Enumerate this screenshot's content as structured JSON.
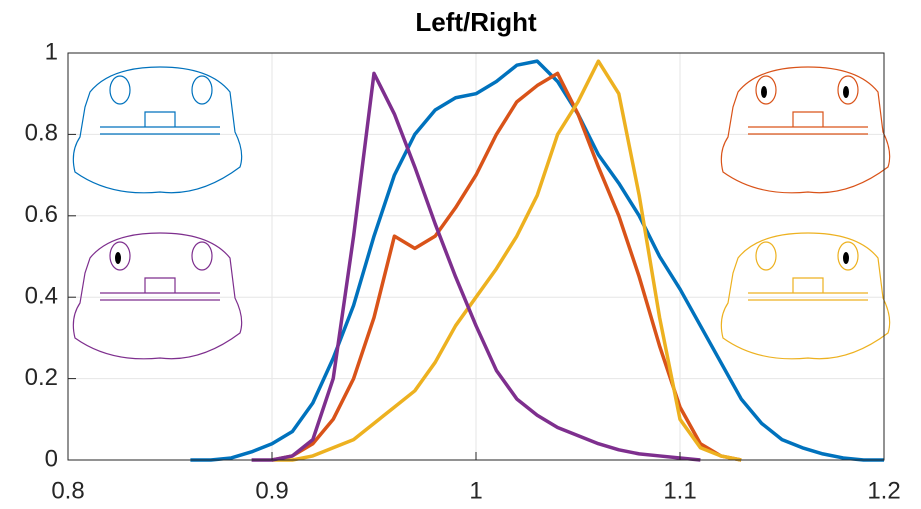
{
  "chart_data": {
    "type": "line",
    "title": "Left/Right",
    "x": [
      0.86,
      0.87,
      0.88,
      0.89,
      0.9,
      0.91,
      0.92,
      0.93,
      0.94,
      0.95,
      0.96,
      0.97,
      0.98,
      0.99,
      1.0,
      1.01,
      1.02,
      1.03,
      1.04,
      1.05,
      1.06,
      1.07,
      1.08,
      1.09,
      1.1,
      1.11,
      1.12,
      1.13,
      1.14,
      1.15,
      1.16,
      1.17,
      1.18,
      1.19,
      1.2
    ],
    "series": [
      {
        "color": "#0072bd",
        "values": [
          0,
          0,
          0.005,
          0.02,
          0.04,
          0.07,
          0.14,
          0.25,
          0.38,
          0.55,
          0.7,
          0.8,
          0.86,
          0.89,
          0.9,
          0.93,
          0.97,
          0.98,
          0.93,
          0.85,
          0.75,
          0.68,
          0.6,
          0.5,
          0.42,
          0.33,
          0.24,
          0.15,
          0.09,
          0.05,
          0.03,
          0.015,
          0.005,
          0,
          0
        ]
      },
      {
        "color": "#d95319",
        "values": [
          null,
          null,
          null,
          null,
          0,
          0.01,
          0.04,
          0.1,
          0.2,
          0.35,
          0.55,
          0.52,
          0.55,
          0.62,
          0.7,
          0.8,
          0.88,
          0.92,
          0.95,
          0.85,
          0.72,
          0.6,
          0.45,
          0.28,
          0.13,
          0.04,
          0.01,
          0,
          null,
          null,
          null,
          null,
          null,
          null,
          null
        ]
      },
      {
        "color": "#edb120",
        "values": [
          null,
          null,
          null,
          null,
          0,
          0,
          0.01,
          0.03,
          0.05,
          0.09,
          0.13,
          0.17,
          0.24,
          0.33,
          0.4,
          0.47,
          0.55,
          0.65,
          0.8,
          0.88,
          0.98,
          0.9,
          0.65,
          0.35,
          0.1,
          0.03,
          0.01,
          0,
          null,
          null,
          null,
          null,
          null,
          null,
          null
        ]
      },
      {
        "color": "#7e2f8e",
        "values": [
          null,
          null,
          null,
          0,
          0,
          0.01,
          0.05,
          0.2,
          0.55,
          0.95,
          0.85,
          0.72,
          0.58,
          0.45,
          0.33,
          0.22,
          0.15,
          0.11,
          0.08,
          0.06,
          0.04,
          0.025,
          0.015,
          0.01,
          0.005,
          0,
          null,
          null,
          null,
          null,
          null,
          null,
          null,
          null,
          null
        ]
      }
    ],
    "xlim": [
      0.8,
      1.2
    ],
    "xticks": [
      0.8,
      0.9,
      1,
      1.1,
      1.2
    ],
    "ylim": [
      0,
      1
    ],
    "yticks": [
      0,
      0.2,
      0.4,
      0.6,
      0.8,
      1
    ],
    "grid": true
  }
}
